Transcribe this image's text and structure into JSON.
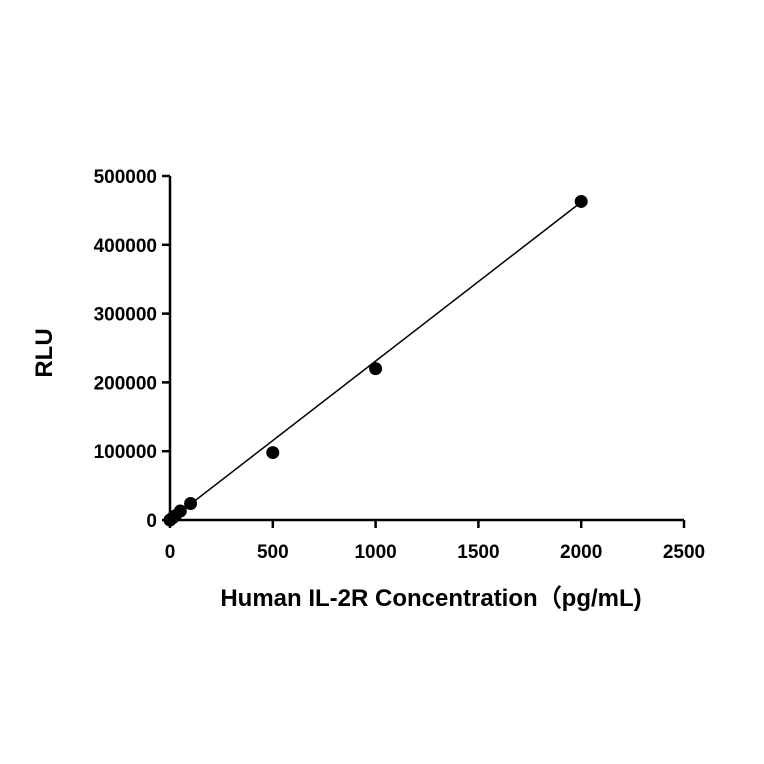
{
  "chart_data": {
    "type": "scatter",
    "title": "",
    "xlabel": "Human IL-2R Concentration（pg/mL)",
    "ylabel": "RLU",
    "xlim": [
      0,
      2500
    ],
    "ylim": [
      0,
      500000
    ],
    "x_ticks": [
      0,
      500,
      1000,
      1500,
      2000,
      2500
    ],
    "y_ticks": [
      0,
      100000,
      200000,
      300000,
      400000,
      500000
    ],
    "x_tick_labels": [
      "0",
      "500",
      "1000",
      "1500",
      "2000",
      "2500"
    ],
    "y_tick_labels": [
      "0",
      "100000",
      "200000",
      "300000",
      "400000",
      "500000"
    ],
    "grid": false,
    "legend": "none",
    "series": [
      {
        "x": [
          0,
          12.5,
          25,
          50,
          100,
          500,
          1000,
          2000
        ],
        "y": [
          0,
          3000,
          6000,
          13000,
          24000,
          98000,
          220000,
          463000
        ]
      }
    ],
    "fit_line": {
      "x": [
        0,
        2000
      ],
      "y": [
        0,
        462000
      ]
    },
    "colors": {
      "points": "#000000",
      "line": "#000000",
      "axes": "#000000"
    }
  }
}
